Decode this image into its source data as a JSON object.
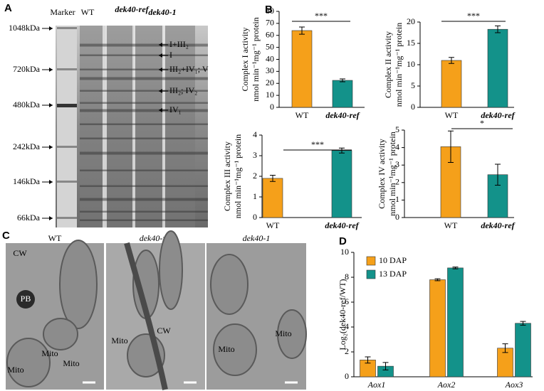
{
  "panel_labels": [
    "A",
    "B",
    "C",
    "D"
  ],
  "gel": {
    "lanes": [
      "Marker",
      "WT",
      "dek40-ref",
      "dek40-1"
    ],
    "size_markers": [
      "1048kDa",
      "720kDa",
      "480kDa",
      "242kDa",
      "146kDa",
      "66kDa"
    ],
    "complexes": [
      "I+III₂",
      "I",
      "III₂+IV₁; V",
      "III₂; IV₂",
      "IV₁"
    ]
  },
  "micrographs": {
    "titles": [
      "WT",
      "dek40-ref",
      "dek40-1"
    ],
    "annotations": [
      "CW",
      "PB",
      "Mito",
      "Mito",
      "Mito",
      "CW",
      "Mito",
      "Mito"
    ]
  },
  "chart_data": [
    {
      "type": "bar",
      "y_label": [
        "Complex I activity",
        "nmol min⁻¹mg⁻¹ protein"
      ],
      "categories": [
        "WT",
        "dek40-ref"
      ],
      "values": [
        64,
        22.5
      ],
      "errors": [
        3,
        1.2
      ],
      "colors": [
        "#f5a01a",
        "#13928a"
      ],
      "ylim": [
        0,
        80
      ],
      "yticks": [
        0,
        10,
        20,
        30,
        40,
        50,
        60,
        70,
        80
      ],
      "significance": "***"
    },
    {
      "type": "bar",
      "y_label": [
        "Complex II activity",
        "nmol min⁻¹mg⁻¹ protein"
      ],
      "categories": [
        "WT",
        "dek40-ref"
      ],
      "values": [
        11,
        18.3
      ],
      "errors": [
        0.7,
        0.8
      ],
      "colors": [
        "#f5a01a",
        "#13928a"
      ],
      "ylim": [
        0,
        20
      ],
      "yticks": [
        0,
        5,
        10,
        15,
        20
      ],
      "significance": "***"
    },
    {
      "type": "bar",
      "y_label": [
        "Complex III activity",
        "nmol min⁻¹mg⁻¹ protein"
      ],
      "categories": [
        "WT",
        "dek40-ref"
      ],
      "values": [
        1.9,
        3.25
      ],
      "errors": [
        0.15,
        0.12
      ],
      "colors": [
        "#f5a01a",
        "#13928a"
      ],
      "ylim": [
        0,
        4
      ],
      "yticks": [
        0,
        1,
        2,
        3,
        4
      ],
      "significance": "***"
    },
    {
      "type": "bar",
      "y_label": [
        "Complex IV activity",
        "nmol min⁻¹mg⁻¹ protein"
      ],
      "categories": [
        "WT",
        "dek40-ref"
      ],
      "values": [
        4.05,
        2.45
      ],
      "errors": [
        0.9,
        0.6
      ],
      "colors": [
        "#f5a01a",
        "#13928a"
      ],
      "ylim": [
        0,
        5
      ],
      "yticks": [
        0,
        1,
        2,
        3,
        4,
        5
      ],
      "significance": "*"
    },
    {
      "type": "grouped_bar",
      "y_label": "Log₂(dek40-ref/WT)",
      "categories": [
        "Aox1",
        "Aox2",
        "Aox3"
      ],
      "series": [
        {
          "name": "10 DAP",
          "color": "#f5a01a",
          "values": [
            1.35,
            7.8,
            2.3
          ],
          "errors": [
            0.25,
            0.08,
            0.35
          ]
        },
        {
          "name": "13 DAP",
          "color": "#13928a",
          "values": [
            0.85,
            8.75,
            4.3
          ],
          "errors": [
            0.3,
            0.07,
            0.15
          ]
        }
      ],
      "ylim": [
        0,
        10
      ],
      "yticks": [
        0,
        2,
        4,
        6,
        8,
        10
      ],
      "legend": "upper left"
    }
  ]
}
